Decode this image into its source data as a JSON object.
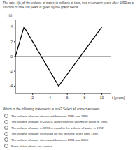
{
  "question": "The rate, r(t), of the volume of water, in millions of tons, in a reservoir t years after 1990 as a function of time t in years is given by the graph below.",
  "chart_data": {
    "type": "line",
    "x": [
      0,
      1,
      5,
      10
    ],
    "values": [
      0,
      4,
      -4,
      4
    ],
    "color": "#000000",
    "x_label": "t (years)",
    "y_label": "r(t)",
    "xlim": [
      0,
      11
    ],
    "ylim": [
      -5,
      5
    ],
    "xticks": [
      2,
      4,
      6,
      8,
      10
    ],
    "yticks": [
      -4,
      -2,
      0,
      2,
      4
    ],
    "grid": false
  },
  "prompt": "Which of the following statements is true? Select all correct answers.",
  "options": [
    "The volume of water decreased between 1990 and 1996.",
    "The volume of water in 2000 is larger than the volume of water in 1990.",
    "The volume of water in 1996 is equal to the volume of water in 1992.",
    "The volume of water increased for the first four years after 1990.",
    "The volume of water decreased between 1994 and 2000.",
    "None of the others are correct."
  ]
}
